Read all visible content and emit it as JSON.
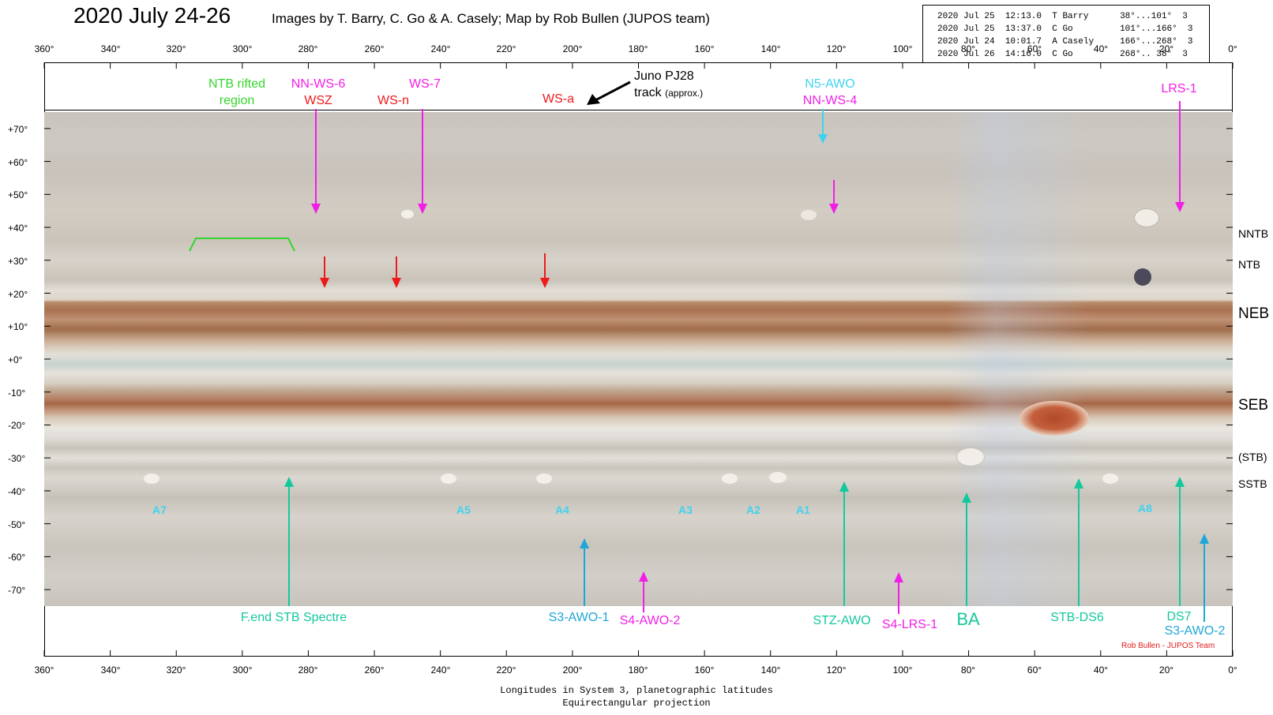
{
  "header": {
    "title": "2020 July 24-26",
    "credits": "Images by T. Barry, C. Go & A. Casely;  Map by Rob Bullen (JUPOS team)"
  },
  "observations": [
    {
      "date": "2020 Jul 25",
      "time": "12:13.0",
      "observer": "T Barry",
      "range": "38°...101°",
      "n": "3"
    },
    {
      "date": "2020 Jul 25",
      "time": "13:37.0",
      "observer": "C Go",
      "range": "101°...166°",
      "n": "3"
    },
    {
      "date": "2020 Jul 24",
      "time": "10:01.7",
      "observer": "A Casely",
      "range": "166°...268°",
      "n": "3"
    },
    {
      "date": "2020 Jul 26",
      "time": "14:16.0",
      "observer": "C Go",
      "range": "268°.. 38°",
      "n": "3"
    }
  ],
  "longitude_ticks": [
    "360°",
    "340°",
    "320°",
    "300°",
    "280°",
    "260°",
    "240°",
    "220°",
    "200°",
    "180°",
    "160°",
    "140°",
    "120°",
    "100°",
    "80°",
    "60°",
    "40°",
    "20°",
    "0°"
  ],
  "latitude_ticks": [
    "+70°",
    "+60°",
    "+50°",
    "+40°",
    "+30°",
    "+20°",
    "+10°",
    "+0°",
    "-10°",
    "-20°",
    "-30°",
    "-40°",
    "-50°",
    "-60°",
    "-70°"
  ],
  "band_labels": {
    "nntb": "NNTB",
    "ntb": "NTB",
    "neb": "NEB",
    "seb": "SEB",
    "stb": "(STB)",
    "sstb": "SSTB"
  },
  "features_top": {
    "ntb_rifted_1": "NTB rifted",
    "ntb_rifted_2": "region",
    "nn_ws_6": "NN-WS-6",
    "wsz": "WSZ",
    "ws_7": "WS-7",
    "ws_n": "WS-n",
    "ws_a": "WS-a",
    "juno_1": "Juno PJ28",
    "juno_2": "track",
    "juno_approx": "(approx.)",
    "n5_awo": "N5-AWO",
    "nn_ws_4": "NN-WS-4",
    "lrs_1": "LRS-1"
  },
  "spots": {
    "a7": "A7",
    "a5": "A5",
    "a4": "A4",
    "a3": "A3",
    "a2": "A2",
    "a1": "A1",
    "a8": "A8"
  },
  "features_bottom": {
    "fend": "F.end STB Spectre",
    "s3_awo_1": "S3-AWO-1",
    "s4_awo_2": "S4-AWO-2",
    "stz_awo": "STZ-AWO",
    "s4_lrs_1": "S4-LRS-1",
    "ba": "BA",
    "stb_ds6": "STB-DS6",
    "ds7": "DS7",
    "s3_awo_2": "S3-AWO-2"
  },
  "signature": "Rob Bullen - JUPOS Team",
  "footer": {
    "line1": "Longitudes in System 3, planetographic latitudes",
    "line2": "Equirectangular projection"
  },
  "colors": {
    "magenta": "#f21ee6",
    "red": "#ec1b1b",
    "green": "#34d52b",
    "cyan": "#3fd2ee",
    "teal": "#14c89e",
    "blue": "#1ea6d8"
  }
}
